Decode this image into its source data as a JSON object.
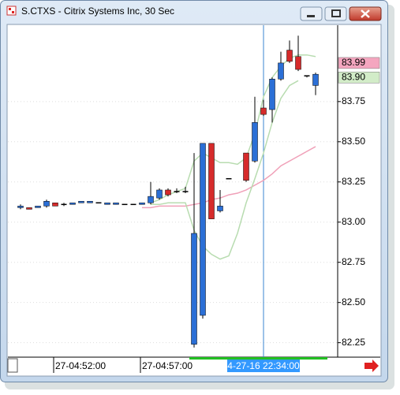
{
  "window": {
    "title": "S.CTXS - Citrix Systems Inc, 30 Sec"
  },
  "chart_data": {
    "type": "candlestick",
    "categories": [
      null,
      null,
      null,
      null,
      "27-04:52:00",
      null,
      null,
      null,
      null,
      null,
      null,
      null,
      null,
      null,
      "27-04:57:00",
      null,
      null,
      null,
      null,
      null,
      null,
      null,
      null,
      null,
      null,
      null,
      null,
      null,
      "4-27-16 22:34:00",
      null,
      null,
      null,
      null,
      null,
      null
    ],
    "open": [
      83.09,
      83.09,
      83.09,
      83.1,
      83.12,
      83.11,
      83.11,
      83.12,
      83.12,
      83.12,
      83.11,
      83.11,
      83.11,
      83.11,
      83.11,
      83.12,
      83.15,
      83.2,
      83.19,
      83.19,
      82.24,
      82.42,
      83.49,
      83.07,
      83.27,
      null,
      83.43,
      83.38,
      83.71,
      83.7,
      83.89,
      84.07,
      84.03,
      83.91,
      83.85
    ],
    "high": [
      83.11,
      83.09,
      83.1,
      83.14,
      83.12,
      83.12,
      83.12,
      83.13,
      83.13,
      83.12,
      83.12,
      83.12,
      83.11,
      83.11,
      83.12,
      83.25,
      83.21,
      83.21,
      83.21,
      83.22,
      83.43,
      83.49,
      83.49,
      83.2,
      83.27,
      null,
      83.43,
      83.78,
      83.76,
      83.9,
      84.06,
      84.13,
      84.16,
      83.91,
      83.93
    ],
    "low": [
      83.08,
      83.08,
      83.09,
      83.09,
      83.1,
      83.1,
      83.11,
      83.12,
      83.12,
      83.12,
      83.11,
      83.11,
      83.11,
      83.11,
      83.11,
      83.11,
      83.14,
      83.16,
      83.18,
      83.18,
      82.22,
      82.4,
      83.02,
      83.06,
      83.27,
      null,
      83.25,
      83.37,
      83.66,
      83.62,
      83.88,
      83.99,
      83.94,
      83.9,
      83.79
    ],
    "close": [
      83.1,
      83.08,
      83.1,
      83.13,
      83.1,
      83.11,
      83.12,
      83.13,
      83.13,
      83.12,
      83.12,
      83.12,
      83.11,
      83.11,
      83.12,
      83.16,
      83.2,
      83.17,
      83.19,
      83.19,
      82.93,
      83.49,
      83.02,
      83.1,
      83.27,
      null,
      83.26,
      83.62,
      83.67,
      83.89,
      83.99,
      84.0,
      83.95,
      83.91,
      83.92
    ],
    "up_color": "#2b6fd6",
    "down_color": "#d62b2b",
    "doji_color": "#000000",
    "series": [
      {
        "color": "#f0a0b8",
        "values": [
          null,
          null,
          null,
          null,
          null,
          null,
          null,
          null,
          null,
          null,
          null,
          null,
          null,
          null,
          83.09,
          83.09,
          83.1,
          83.1,
          83.1,
          83.1,
          83.11,
          83.12,
          83.14,
          83.15,
          83.17,
          83.18,
          83.2,
          83.23,
          83.26,
          83.3,
          83.35,
          83.38,
          83.41,
          83.44,
          83.47
        ]
      },
      {
        "color": "#b8dcb0",
        "values": [
          null,
          null,
          null,
          null,
          null,
          null,
          null,
          null,
          null,
          null,
          null,
          null,
          null,
          null,
          null,
          83.12,
          83.14,
          83.17,
          83.19,
          83.21,
          83.38,
          83.43,
          83.4,
          83.37,
          83.37,
          83.36,
          83.4,
          83.55,
          83.78,
          83.9,
          83.97,
          84.02,
          84.04,
          84.04,
          84.03
        ]
      },
      {
        "color": "#b8dcb0",
        "values": [
          null,
          null,
          null,
          null,
          null,
          null,
          null,
          null,
          null,
          null,
          null,
          null,
          null,
          null,
          null,
          83.11,
          83.11,
          83.12,
          83.12,
          83.12,
          82.95,
          82.85,
          82.8,
          82.77,
          82.79,
          82.93,
          83.12,
          83.27,
          83.43,
          83.62,
          83.77,
          83.85,
          83.88,
          null,
          null
        ]
      }
    ],
    "ylim": [
      82.16,
      84.22
    ],
    "yticks": [
      {
        "value": 82.25,
        "label": "82.25"
      },
      {
        "value": 82.5,
        "label": "82.50"
      },
      {
        "value": 82.75,
        "label": "82.75"
      },
      {
        "value": 83,
        "label": "83.00"
      },
      {
        "value": 83.25,
        "label": "83.25"
      },
      {
        "value": 83.5,
        "label": "83.50"
      },
      {
        "value": 83.75,
        "label": "83.75"
      }
    ],
    "grid": true,
    "cursor_index": 28,
    "price_tags": [
      {
        "value": 83.99,
        "label": "83.99",
        "color": "#f4a6bf"
      },
      {
        "value": 83.9,
        "label": "83.90",
        "color": "#d2ecc8"
      }
    ]
  }
}
